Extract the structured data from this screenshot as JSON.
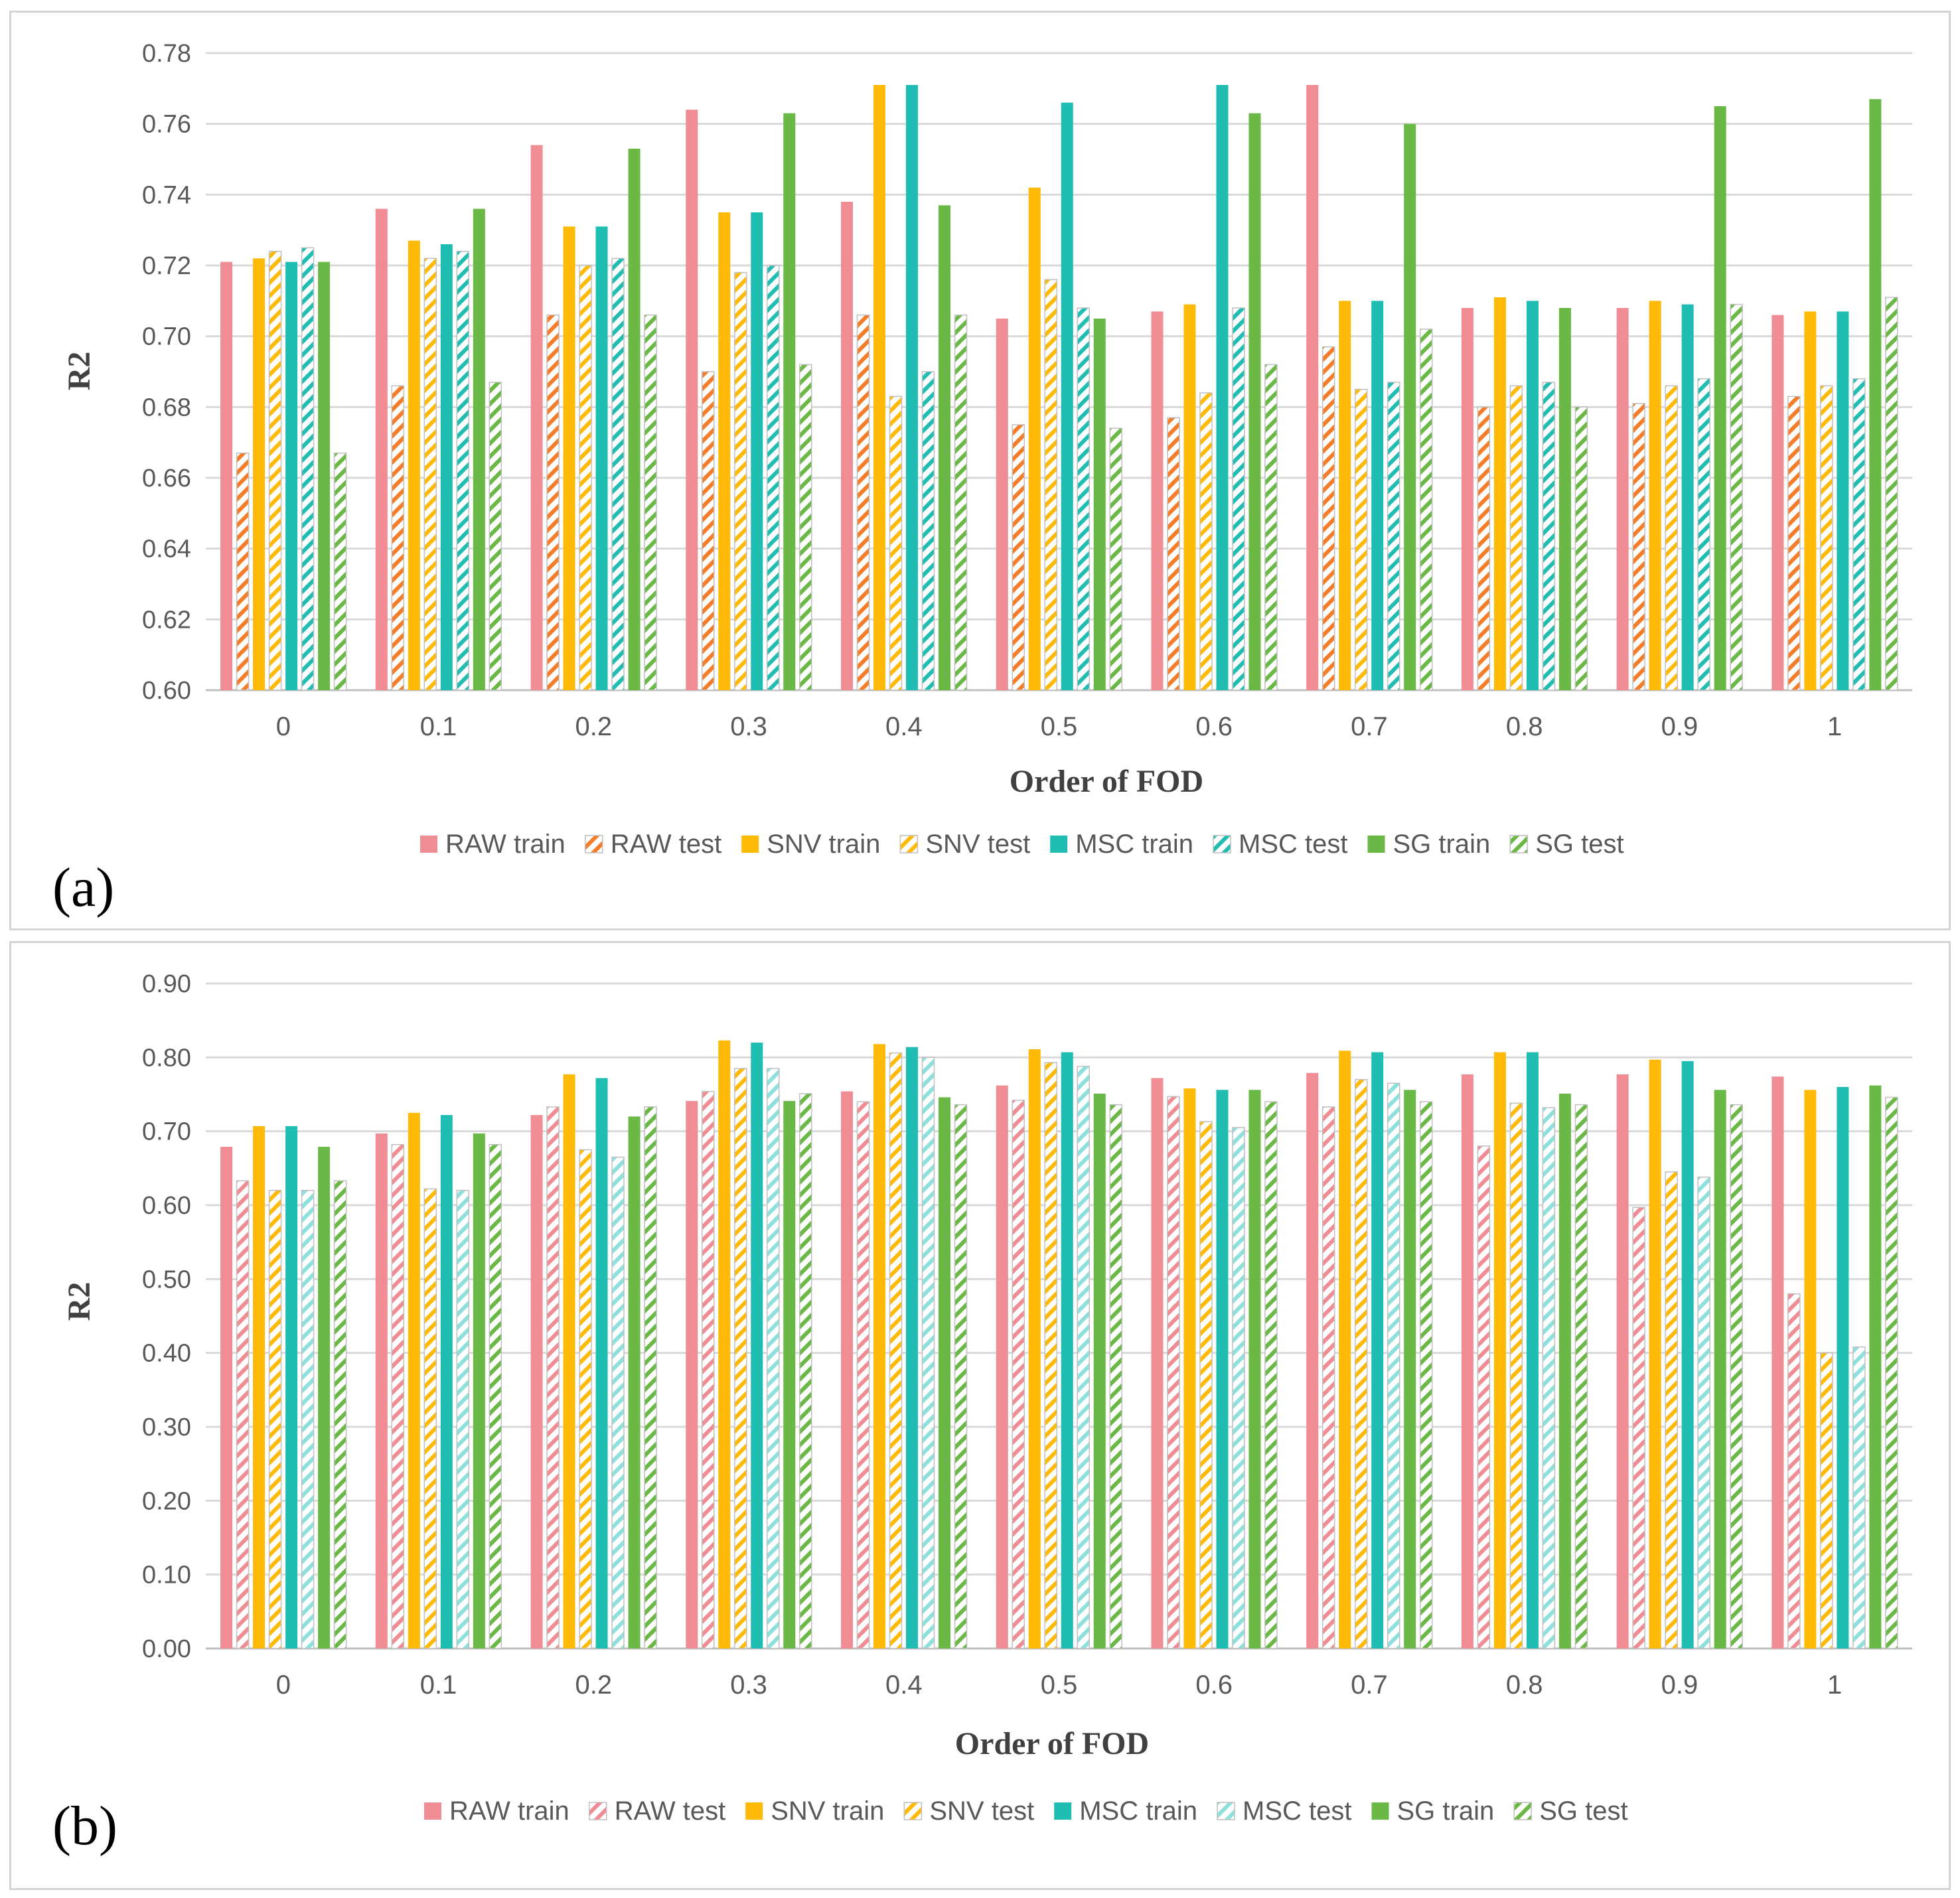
{
  "series_legend": [
    {
      "name": "RAW train",
      "color": "#f08c94",
      "pattern": "solid"
    },
    {
      "name": "RAW test",
      "color": "#f57d2a",
      "pattern": "hatch"
    },
    {
      "name": "SNV train",
      "color": "#ffba08",
      "pattern": "solid"
    },
    {
      "name": "SNV test",
      "color": "#ffba08",
      "pattern": "hatch"
    },
    {
      "name": "MSC train",
      "color": "#20bdb3",
      "pattern": "solid"
    },
    {
      "name": "MSC test",
      "color": "#20bdb3",
      "pattern": "hatch"
    },
    {
      "name": "SG train",
      "color": "#6ab845",
      "pattern": "solid"
    },
    {
      "name": "SG test",
      "color": "#6ab845",
      "pattern": "hatch"
    }
  ],
  "chart_data": [
    {
      "panel_label": "(a)",
      "type": "bar",
      "xlabel": "Order of FOD",
      "ylabel": "R2",
      "ylim": [
        0.6,
        0.78
      ],
      "yticks": [
        "0.60",
        "0.62",
        "0.64",
        "0.66",
        "0.68",
        "0.70",
        "0.72",
        "0.74",
        "0.76",
        "0.78"
      ],
      "categories": [
        "0",
        "0.1",
        "0.2",
        "0.3",
        "0.4",
        "0.5",
        "0.6",
        "0.7",
        "0.8",
        "0.9",
        "1"
      ],
      "series_colors": [
        "#f08c94",
        "#f57d2a",
        "#ffba08",
        "#ffba08",
        "#20bdb3",
        "#20bdb3",
        "#6ab845",
        "#6ab845"
      ],
      "legend": [
        "RAW train",
        "RAW test",
        "SNV train",
        "SNV test",
        "MSC train",
        "MSC test",
        "SG train",
        "SG test"
      ],
      "series": [
        {
          "name": "RAW train",
          "values": [
            0.721,
            0.736,
            0.754,
            0.764,
            0.738,
            0.705,
            0.707,
            0.771,
            0.708,
            0.708,
            0.706
          ]
        },
        {
          "name": "RAW test",
          "values": [
            0.667,
            0.686,
            0.706,
            0.69,
            0.706,
            0.675,
            0.677,
            0.697,
            0.68,
            0.681,
            0.683
          ]
        },
        {
          "name": "SNV train",
          "values": [
            0.722,
            0.727,
            0.731,
            0.735,
            0.771,
            0.742,
            0.709,
            0.71,
            0.711,
            0.71,
            0.707
          ]
        },
        {
          "name": "SNV test",
          "values": [
            0.724,
            0.722,
            0.72,
            0.718,
            0.683,
            0.716,
            0.684,
            0.685,
            0.686,
            0.686,
            0.686
          ]
        },
        {
          "name": "MSC train",
          "values": [
            0.721,
            0.726,
            0.731,
            0.735,
            0.771,
            0.766,
            0.771,
            0.71,
            0.71,
            0.709,
            0.707
          ]
        },
        {
          "name": "MSC test",
          "values": [
            0.725,
            0.724,
            0.722,
            0.72,
            0.69,
            0.708,
            0.708,
            0.687,
            0.687,
            0.688,
            0.688
          ]
        },
        {
          "name": "SG train",
          "values": [
            0.721,
            0.736,
            0.753,
            0.763,
            0.737,
            0.705,
            0.763,
            0.76,
            0.708,
            0.765,
            0.767
          ]
        },
        {
          "name": "SG test",
          "values": [
            0.667,
            0.687,
            0.706,
            0.692,
            0.706,
            0.674,
            0.692,
            0.702,
            0.68,
            0.709,
            0.711
          ]
        }
      ]
    },
    {
      "panel_label": "(b)",
      "type": "bar",
      "xlabel": "Order of FOD",
      "ylabel": "R2",
      "ylim": [
        0.0,
        0.9
      ],
      "yticks": [
        "0.00",
        "0.10",
        "0.20",
        "0.30",
        "0.40",
        "0.50",
        "0.60",
        "0.70",
        "0.80",
        "0.90"
      ],
      "categories": [
        "0",
        "0.1",
        "0.2",
        "0.3",
        "0.4",
        "0.5",
        "0.6",
        "0.7",
        "0.8",
        "0.9",
        "1"
      ],
      "series_colors": [
        "#f08c94",
        "#f08c94",
        "#ffba08",
        "#ffba08",
        "#20bdb3",
        "#8ee0dc",
        "#6ab845",
        "#6ab845"
      ],
      "legend": [
        "RAW train",
        "RAW test",
        "SNV train",
        "SNV test",
        "MSC train",
        "MSC test",
        "SG train",
        "SG test"
      ],
      "series": [
        {
          "name": "RAW train",
          "values": [
            0.679,
            0.697,
            0.722,
            0.741,
            0.754,
            0.762,
            0.772,
            0.779,
            0.777,
            0.777,
            0.774
          ]
        },
        {
          "name": "RAW test",
          "values": [
            0.633,
            0.682,
            0.733,
            0.754,
            0.74,
            0.742,
            0.747,
            0.733,
            0.68,
            0.597,
            0.48
          ]
        },
        {
          "name": "SNV train",
          "values": [
            0.707,
            0.725,
            0.777,
            0.823,
            0.818,
            0.811,
            0.758,
            0.809,
            0.807,
            0.797,
            0.756
          ]
        },
        {
          "name": "SNV test",
          "values": [
            0.62,
            0.622,
            0.675,
            0.785,
            0.806,
            0.793,
            0.713,
            0.77,
            0.738,
            0.645,
            0.4
          ]
        },
        {
          "name": "MSC train",
          "values": [
            0.707,
            0.722,
            0.772,
            0.82,
            0.814,
            0.807,
            0.756,
            0.807,
            0.807,
            0.795,
            0.76
          ]
        },
        {
          "name": "MSC test",
          "values": [
            0.62,
            0.62,
            0.665,
            0.785,
            0.8,
            0.788,
            0.705,
            0.765,
            0.732,
            0.638,
            0.408
          ]
        },
        {
          "name": "SG train",
          "values": [
            0.679,
            0.697,
            0.72,
            0.741,
            0.746,
            0.751,
            0.756,
            0.756,
            0.751,
            0.756,
            0.762
          ]
        },
        {
          "name": "SG test",
          "values": [
            0.633,
            0.682,
            0.733,
            0.751,
            0.736,
            0.736,
            0.74,
            0.74,
            0.736,
            0.736,
            0.746
          ]
        }
      ]
    }
  ]
}
